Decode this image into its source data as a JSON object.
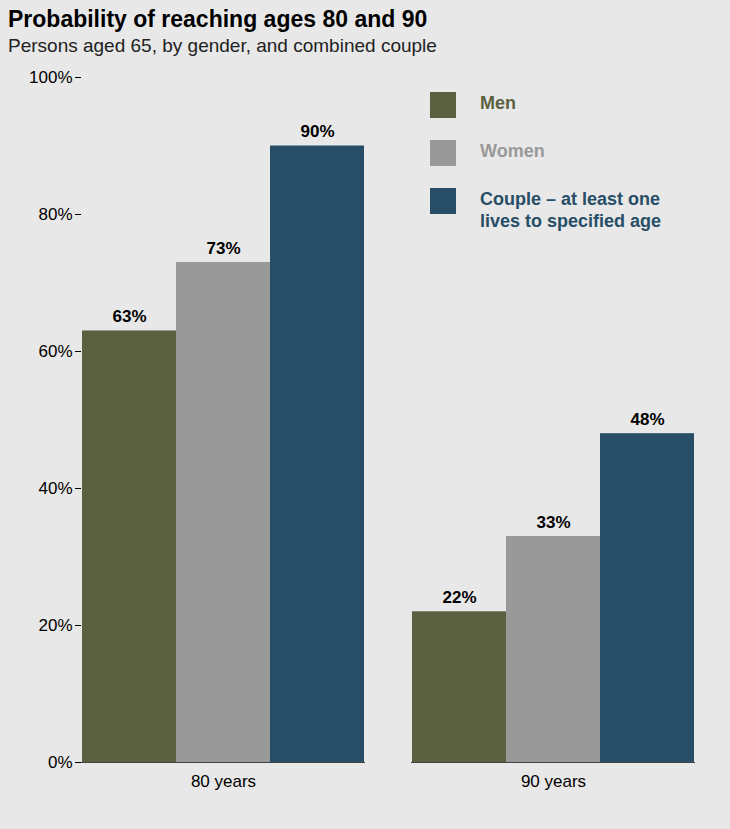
{
  "chart_data": {
    "type": "bar",
    "title": "Probability of reaching ages 80 and 90",
    "subtitle": "Persons aged 65, by gender, and combined couple",
    "categories": [
      "80 years",
      "90 years"
    ],
    "series": [
      {
        "name": "Men",
        "color": "#5b6140",
        "values": [
          63,
          22
        ],
        "value_labels": [
          "63%",
          "22%"
        ]
      },
      {
        "name": "Women",
        "color": "#999999",
        "values": [
          73,
          33
        ],
        "value_labels": [
          "73%",
          "33%"
        ]
      },
      {
        "name": "Couple – at least one lives to specified age",
        "color": "#274e66",
        "values": [
          90,
          48
        ],
        "value_labels": [
          "90%",
          "48%"
        ]
      }
    ],
    "ylim": [
      0,
      100
    ],
    "yticks": [
      {
        "value": 0,
        "label": "0%"
      },
      {
        "value": 20,
        "label": "20%"
      },
      {
        "value": 40,
        "label": "40%"
      },
      {
        "value": 60,
        "label": "60%"
      },
      {
        "value": 80,
        "label": "80%"
      },
      {
        "value": 100,
        "label": "100%"
      }
    ],
    "grid": false,
    "legend": "top-right",
    "data_labels": true
  }
}
